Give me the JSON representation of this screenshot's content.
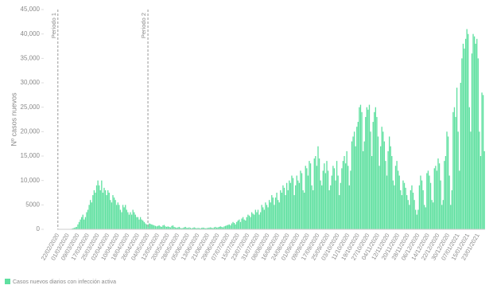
{
  "chart_data": {
    "type": "bar",
    "y_label": "Nº casos nuevos",
    "ylim": [
      0,
      45000
    ],
    "yticks": [
      0,
      5000,
      {
        "value": 10000,
        "label": "10,000"
      },
      {
        "value": 15000,
        "label": "15,000"
      },
      {
        "value": 20000,
        "label": "20,000"
      },
      {
        "value": 25000,
        "label": "25,000"
      },
      {
        "value": 30000,
        "label": "30,000"
      },
      {
        "value": 35000,
        "label": "35,000"
      },
      {
        "value": 40000,
        "label": "40,000"
      },
      {
        "value": 45000,
        "label": "45,000"
      }
    ],
    "grid": false,
    "legend": "bottom-left",
    "annotations": [
      {
        "text": "Periodo 1",
        "category": "22/02/2020"
      },
      {
        "text": "Periodo 2",
        "category": "04/05/2020"
      }
    ],
    "categories": [
      "22/02/2020",
      null,
      null,
      null,
      null,
      null,
      null,
      null,
      "01/03/2020",
      null,
      null,
      null,
      null,
      null,
      null,
      null,
      "09/03/2020",
      null,
      null,
      null,
      null,
      null,
      null,
      null,
      "17/03/2020",
      null,
      null,
      null,
      null,
      null,
      null,
      null,
      "25/03/2020",
      null,
      null,
      null,
      null,
      null,
      null,
      null,
      "02/04/2020",
      null,
      null,
      null,
      null,
      null,
      null,
      null,
      "10/04/2020",
      null,
      null,
      null,
      null,
      null,
      null,
      null,
      "18/04/2020",
      null,
      null,
      null,
      null,
      null,
      null,
      null,
      "26/04/2020",
      null,
      null,
      null,
      null,
      null,
      null,
      null,
      "04/05/2020",
      null,
      null,
      null,
      null,
      null,
      null,
      null,
      "12/05/2020",
      null,
      null,
      null,
      null,
      null,
      null,
      null,
      "20/05/2020",
      null,
      null,
      null,
      null,
      null,
      null,
      null,
      "28/05/2020",
      null,
      null,
      null,
      null,
      null,
      null,
      null,
      "05/06/2020",
      null,
      null,
      null,
      null,
      null,
      null,
      null,
      "13/06/2020",
      null,
      null,
      null,
      null,
      null,
      null,
      null,
      "21/06/2020",
      null,
      null,
      null,
      null,
      null,
      null,
      null,
      "29/06/2020",
      null,
      null,
      null,
      null,
      null,
      null,
      null,
      "07/07/2020",
      null,
      null,
      null,
      null,
      null,
      null,
      null,
      "15/07/2020",
      null,
      null,
      null,
      null,
      null,
      null,
      null,
      "23/07/2020",
      null,
      null,
      null,
      null,
      null,
      null,
      null,
      "31/07/2020",
      null,
      null,
      null,
      null,
      null,
      null,
      null,
      "08/08/2020",
      null,
      null,
      null,
      null,
      null,
      null,
      null,
      "16/08/2020",
      null,
      null,
      null,
      null,
      null,
      null,
      null,
      "24/08/2020",
      null,
      null,
      null,
      null,
      null,
      null,
      null,
      "01/09/2020",
      null,
      null,
      null,
      null,
      null,
      null,
      null,
      "09/09/2020",
      null,
      null,
      null,
      null,
      null,
      null,
      null,
      "17/09/2020",
      null,
      null,
      null,
      null,
      null,
      null,
      null,
      "25/09/2020",
      null,
      null,
      null,
      null,
      null,
      null,
      null,
      "03/10/2020",
      null,
      null,
      null,
      null,
      null,
      null,
      null,
      "11/10/2020",
      null,
      null,
      null,
      null,
      null,
      null,
      null,
      "19/10/2020",
      null,
      null,
      null,
      null,
      null,
      null,
      null,
      "27/10/2020",
      null,
      null,
      null,
      null,
      null,
      null,
      null,
      "04/11/2020",
      null,
      null,
      null,
      null,
      null,
      null,
      null,
      "12/11/2020",
      null,
      null,
      null,
      null,
      null,
      null,
      null,
      "20/11/2020",
      null,
      null,
      null,
      null,
      null,
      null,
      null,
      "28/11/2020",
      null,
      null,
      null,
      null,
      null,
      null,
      null,
      "06/12/2020",
      null,
      null,
      null,
      null,
      null,
      null,
      null,
      "14/12/2020",
      null,
      null,
      null,
      null,
      null,
      null,
      null,
      "22/12/2020",
      null,
      null,
      null,
      null,
      null,
      null,
      null,
      "30/12/2020",
      null,
      null,
      null,
      null,
      null,
      null,
      null,
      "07/01/2021",
      null,
      null,
      null,
      null,
      null,
      null,
      null,
      "15/01/2021",
      null,
      null,
      null,
      null,
      null,
      null,
      null,
      "23/01/2021",
      null,
      null,
      null,
      null,
      null
    ],
    "series": [
      {
        "name": "Casos nuevos diarios con infección activa",
        "color": "#5fe0a0",
        "values": [
          0,
          0,
          0,
          0,
          2,
          5,
          10,
          15,
          30,
          50,
          80,
          120,
          200,
          300,
          400,
          500,
          1000,
          1500,
          2000,
          2500,
          3000,
          2000,
          2500,
          3500,
          4000,
          5000,
          6000,
          5500,
          7000,
          8000,
          7500,
          9000,
          10000,
          9000,
          8000,
          10000,
          7500,
          8500,
          8000,
          7000,
          8000,
          7500,
          6000,
          5500,
          7000,
          6500,
          6000,
          5000,
          5500,
          5000,
          4000,
          3500,
          5000,
          4500,
          5000,
          4000,
          3500,
          3000,
          3500,
          3000,
          4000,
          3500,
          3000,
          2500,
          2500,
          2000,
          2500,
          2000,
          1800,
          1500,
          1200,
          1000,
          900,
          1200,
          1100,
          1000,
          900,
          800,
          700,
          600,
          700,
          800,
          600,
          500,
          800,
          900,
          600,
          500,
          600,
          500,
          400,
          700,
          800,
          500,
          400,
          300,
          400,
          500,
          300,
          200,
          300,
          400,
          500,
          300,
          300,
          400,
          300,
          200,
          300,
          400,
          300,
          200,
          300,
          250,
          200,
          300,
          350,
          300,
          200,
          250,
          300,
          350,
          400,
          300,
          250,
          400,
          500,
          350,
          400,
          500,
          600,
          500,
          400,
          600,
          700,
          800,
          900,
          1000,
          800,
          1200,
          1500,
          1300,
          1000,
          1500,
          1800,
          2000,
          1500,
          2200,
          2500,
          2000,
          1800,
          2500,
          3000,
          2800,
          2500,
          3500,
          3200,
          3000,
          4000,
          3500,
          4000,
          3000,
          3500,
          5000,
          4500,
          4000,
          5500,
          5000,
          4500,
          6000,
          5500,
          7000,
          6500,
          5000,
          6500,
          7500,
          6000,
          5500,
          8000,
          7500,
          9000,
          8500,
          7000,
          9500,
          8000,
          10000,
          9500,
          11000,
          10500,
          7000,
          9000,
          11000,
          10000,
          9500,
          12000,
          11500,
          8000,
          7500,
          13000,
          12500,
          11000,
          14000,
          13500,
          9000,
          8000,
          14500,
          15000,
          13000,
          17000,
          14500,
          10000,
          9000,
          12000,
          13500,
          11500,
          14000,
          12000,
          8000,
          9000,
          11000,
          13000,
          12500,
          10000,
          14000,
          11000,
          7000,
          9500,
          12500,
          14000,
          15000,
          13500,
          16000,
          13000,
          9000,
          12000,
          18000,
          19000,
          20000,
          17000,
          21000,
          22000,
          25000,
          25500,
          24000,
          16000,
          18000,
          23000,
          25000,
          24500,
          25500,
          20000,
          15000,
          22000,
          24000,
          25000,
          23000,
          19000,
          13000,
          17000,
          21000,
          20000,
          18000,
          14000,
          11000,
          16000,
          19000,
          17000,
          15000,
          10000,
          9000,
          13000,
          14000,
          12000,
          11000,
          8000,
          7000,
          10000,
          9500,
          8500,
          7000,
          6000,
          5000,
          8000,
          9000,
          7500,
          6000,
          4000,
          3000,
          4000,
          9000,
          11000,
          10000,
          8000,
          5000,
          4500,
          11500,
          12000,
          11000,
          9500,
          6000,
          5500,
          12500,
          13000,
          12000,
          14500,
          13500,
          10000,
          5000,
          6000,
          14000,
          15000,
          20000,
          19000,
          11000,
          5000,
          8000,
          24000,
          25000,
          23000,
          29000,
          20000,
          12000,
          30000,
          35000,
          38000,
          37000,
          39000,
          41000,
          40000,
          25000,
          20000,
          36000,
          40000,
          39500,
          38000,
          39000,
          35000,
          20000,
          15000,
          28000,
          27500,
          16000
        ]
      }
    ]
  }
}
